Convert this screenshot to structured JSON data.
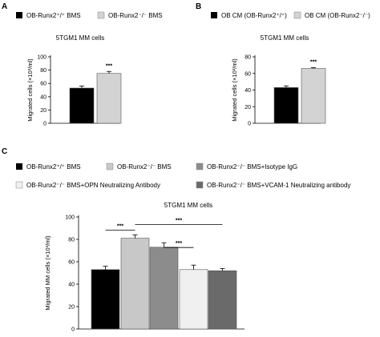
{
  "panels": [
    {
      "letter": "A",
      "legend": [
        {
          "label": "OB-Runx2⁺/⁺ BMS",
          "color": "#000000"
        },
        {
          "label": "OB-Runx2⁻/⁻ BMS",
          "color": "#d3d3d3"
        }
      ]
    },
    {
      "letter": "B",
      "legend": [
        {
          "label": "OB CM (OB-Runx2⁺/⁺)",
          "color": "#000000"
        },
        {
          "label": "OB CM (OB-Runx2⁻/⁻)",
          "color": "#d3d3d3"
        }
      ]
    },
    {
      "letter": "C",
      "legend": [
        {
          "label": "OB-Runx2⁺/⁺ BMS",
          "color": "#000000"
        },
        {
          "label": "OB-Runx2⁻/⁻ BMS",
          "color": "#c8c8c8"
        },
        {
          "label": "OB-Runx2⁻/⁻ BMS+Isotype IgG",
          "color": "#8c8c8c"
        },
        {
          "label": "OB-Runx2⁻/⁻ BMS+OPN Neutralizing Antibody",
          "color": "#f0f0f0"
        },
        {
          "label": "OB-Runx2⁻/⁻ BMS+VCAM-1 Neutralizing antibody",
          "color": "#6a6a6a"
        }
      ]
    }
  ],
  "chart_data": [
    {
      "type": "bar",
      "panel": "A",
      "title": "5TGM1 MM cells",
      "ylabel": "Migrated cells (×10³/ml)",
      "ylim": [
        0,
        100
      ],
      "yticks": [
        0,
        20,
        40,
        60,
        80,
        100
      ],
      "series": [
        {
          "name": "OB-Runx2⁺/⁺ BMS",
          "value": 53,
          "error": 3,
          "color": "#000000"
        },
        {
          "name": "OB-Runx2⁻/⁻ BMS",
          "value": 75,
          "error": 3,
          "color": "#d3d3d3"
        }
      ],
      "significance": [
        {
          "bars": [
            1
          ],
          "label": "***"
        }
      ]
    },
    {
      "type": "bar",
      "panel": "B",
      "title": "5TGM1 MM cells",
      "ylabel": "Migrated cells (×10³/ml)",
      "ylim": [
        0,
        80
      ],
      "yticks": [
        0,
        20,
        40,
        60,
        80
      ],
      "series": [
        {
          "name": "OB CM (OB-Runx2⁺/⁺)",
          "value": 43,
          "error": 2,
          "color": "#000000"
        },
        {
          "name": "OB CM (OB-Runx2⁻/⁻)",
          "value": 66,
          "error": 1,
          "color": "#d3d3d3"
        }
      ],
      "significance": [
        {
          "bars": [
            1
          ],
          "label": "***"
        }
      ]
    },
    {
      "type": "bar",
      "panel": "C",
      "title": "5TGM1 MM cells",
      "ylabel": "Migrated MM cells (×10³/ml)",
      "ylim": [
        0,
        100
      ],
      "yticks": [
        0,
        20,
        40,
        60,
        80,
        100
      ],
      "series": [
        {
          "name": "OB-Runx2⁺/⁺ BMS",
          "value": 53,
          "error": 3,
          "color": "#000000"
        },
        {
          "name": "OB-Runx2⁻/⁻ BMS",
          "value": 81,
          "error": 3,
          "color": "#c8c8c8"
        },
        {
          "name": "OB-Runx2⁻/⁻ BMS+Isotype IgG",
          "value": 73,
          "error": 4,
          "color": "#8c8c8c"
        },
        {
          "name": "OB-Runx2⁻/⁻ BMS+OPN Neutralizing Antibody",
          "value": 53,
          "error": 4,
          "color": "#f0f0f0"
        },
        {
          "name": "OB-Runx2⁻/⁻ BMS+VCAM-1 Neutralizing antibody",
          "value": 52,
          "error": 2,
          "color": "#6a6a6a"
        }
      ],
      "significance": [
        {
          "bars": [
            0,
            1
          ],
          "label": "***"
        },
        {
          "bars": [
            1,
            4
          ],
          "label": "***"
        },
        {
          "bars": [
            2,
            3
          ],
          "label": "***"
        }
      ]
    }
  ]
}
